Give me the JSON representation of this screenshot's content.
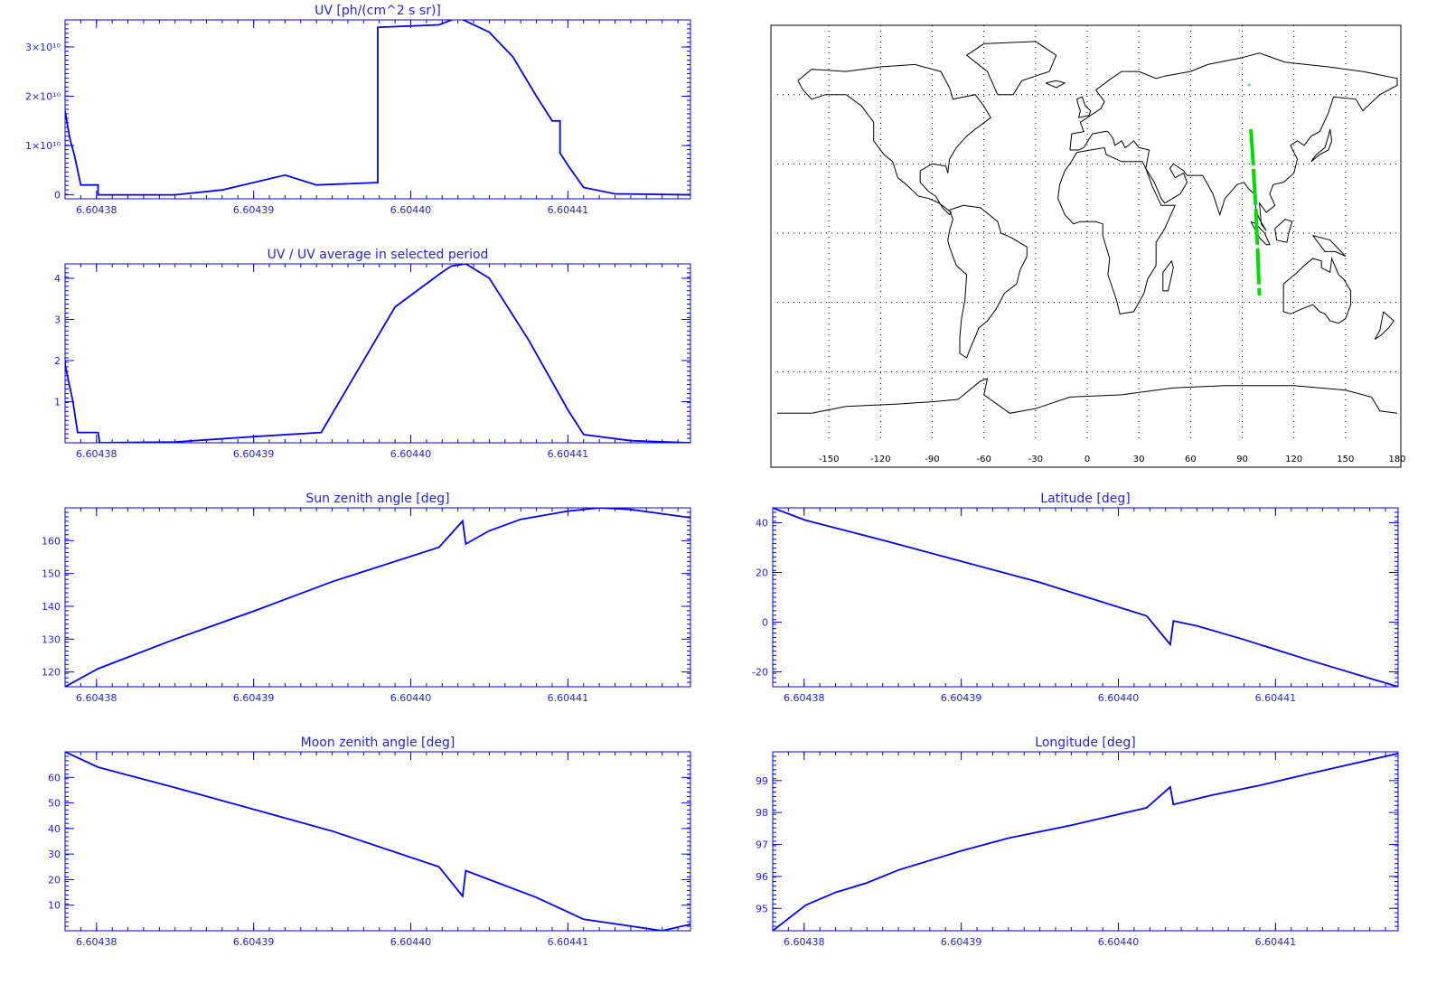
{
  "colors": {
    "axis": "#0000ff",
    "line": "#0000ff",
    "track": "#00dd00",
    "map": "#000000"
  },
  "chart_data": [
    {
      "id": "uv",
      "type": "line",
      "title": "UV [ph/(cm^2 s sr)]",
      "xlim": [
        6.604378,
        6.6044178
      ],
      "ylim": [
        -800000000.0,
        35500000000.0
      ],
      "xticks": [
        {
          "v": 6.60438,
          "label": "6.60438"
        },
        {
          "v": 6.60439,
          "label": "6.60439"
        },
        {
          "v": 6.6044,
          "label": "6.60440"
        },
        {
          "v": 6.60441,
          "label": "6.60441"
        }
      ],
      "yticks": [
        {
          "v": 0,
          "label": "0"
        },
        {
          "v": 10000000000.0,
          "label": "1×10¹⁰"
        },
        {
          "v": 20000000000.0,
          "label": "2×10¹⁰"
        },
        {
          "v": 30000000000.0,
          "label": "3×10¹⁰"
        }
      ],
      "series": [
        {
          "points": [
            [
              6.604378,
              17000000000.0
            ],
            [
              6.6043783,
              11500000000.0
            ],
            [
              6.6043786,
              8000000000.0
            ],
            [
              6.604379,
              2000000000.0
            ],
            [
              6.6043801,
              2000000000.0
            ],
            [
              6.6043801,
              0
            ],
            [
              6.604385,
              0
            ],
            [
              6.604388,
              1000000000.0
            ],
            [
              6.604392,
              4000000000.0
            ],
            [
              6.604394,
              2000000000.0
            ],
            [
              6.6043979,
              2500000000.0
            ],
            [
              6.6043979,
              34000000000.0
            ],
            [
              6.6044018,
              34500000000.0
            ],
            [
              6.604403,
              36000000000.0
            ],
            [
              6.604405,
              33000000000.0
            ],
            [
              6.6044065,
              28000000000.0
            ],
            [
              6.604408,
              20000000000.0
            ],
            [
              6.604409,
              15000000000.0
            ],
            [
              6.6044095,
              15000000000.0
            ],
            [
              6.6044095,
              8500000000.0
            ],
            [
              6.60441,
              6000000000.0
            ],
            [
              6.604411,
              1500000000.0
            ],
            [
              6.604413,
              200000000.0
            ],
            [
              6.6044178,
              0
            ]
          ]
        }
      ]
    },
    {
      "id": "uv_ratio",
      "type": "line",
      "title": "UV / UV average in selected period",
      "xlim": [
        6.604378,
        6.6044178
      ],
      "ylim": [
        0,
        4.35
      ],
      "xticks": [
        {
          "v": 6.60438,
          "label": "6.60438"
        },
        {
          "v": 6.60439,
          "label": "6.60439"
        },
        {
          "v": 6.6044,
          "label": "6.60440"
        },
        {
          "v": 6.60441,
          "label": "6.60441"
        }
      ],
      "yticks": [
        {
          "v": 1,
          "label": "1"
        },
        {
          "v": 2,
          "label": "2"
        },
        {
          "v": 3,
          "label": "3"
        },
        {
          "v": 4,
          "label": "4"
        }
      ],
      "series": [
        {
          "points": [
            [
              6.604378,
              2.0
            ],
            [
              6.604378,
              1.9
            ],
            [
              6.6043785,
              1.0
            ],
            [
              6.6043788,
              0.25
            ],
            [
              6.6043801,
              0.25
            ],
            [
              6.6043802,
              0.0
            ],
            [
              6.604385,
              0.02
            ],
            [
              6.60439,
              0.15
            ],
            [
              6.6043943,
              0.25
            ],
            [
              6.604399,
              3.3
            ],
            [
              6.604402,
              4.15
            ],
            [
              6.6044026,
              4.3
            ],
            [
              6.6044035,
              4.35
            ],
            [
              6.604405,
              4.0
            ],
            [
              6.6044075,
              2.5
            ],
            [
              6.60441,
              0.8
            ],
            [
              6.604411,
              0.2
            ],
            [
              6.604414,
              0.05
            ],
            [
              6.6044178,
              0.0
            ]
          ]
        }
      ]
    },
    {
      "id": "sza",
      "type": "line",
      "title": "Sun zenith angle [deg]",
      "xlim": [
        6.604378,
        6.6044178
      ],
      "ylim": [
        115.5,
        170
      ],
      "xticks": [
        {
          "v": 6.60438,
          "label": "6.60438"
        },
        {
          "v": 6.60439,
          "label": "6.60439"
        },
        {
          "v": 6.6044,
          "label": "6.60440"
        },
        {
          "v": 6.60441,
          "label": "6.60441"
        }
      ],
      "yticks": [
        {
          "v": 120,
          "label": "120"
        },
        {
          "v": 130,
          "label": "130"
        },
        {
          "v": 140,
          "label": "140"
        },
        {
          "v": 150,
          "label": "150"
        },
        {
          "v": 160,
          "label": "160"
        }
      ],
      "series": [
        {
          "points": [
            [
              6.604378,
              115.5
            ],
            [
              6.6043801,
              121
            ],
            [
              6.604385,
              130
            ],
            [
              6.60439,
              138.5
            ],
            [
              6.604395,
              147.5
            ],
            [
              6.6044018,
              158
            ],
            [
              6.6044033,
              166
            ],
            [
              6.6044035,
              159
            ],
            [
              6.604405,
              163
            ],
            [
              6.604407,
              166.5
            ],
            [
              6.60441,
              169
            ],
            [
              6.604412,
              170
            ],
            [
              6.604414,
              169.5
            ],
            [
              6.6044178,
              167
            ]
          ]
        }
      ]
    },
    {
      "id": "lat",
      "type": "line",
      "title": "Latitude [deg]",
      "xlim": [
        6.604378,
        6.6044178
      ],
      "ylim": [
        -26,
        46
      ],
      "xticks": [
        {
          "v": 6.60438,
          "label": "6.60438"
        },
        {
          "v": 6.60439,
          "label": "6.60439"
        },
        {
          "v": 6.6044,
          "label": "6.60440"
        },
        {
          "v": 6.60441,
          "label": "6.60441"
        }
      ],
      "yticks": [
        {
          "v": -20,
          "label": "-20"
        },
        {
          "v": 0,
          "label": "0"
        },
        {
          "v": 20,
          "label": "20"
        },
        {
          "v": 40,
          "label": "40"
        }
      ],
      "series": [
        {
          "points": [
            [
              6.604378,
              46
            ],
            [
              6.6043801,
              41
            ],
            [
              6.604385,
              33
            ],
            [
              6.60439,
              24.5
            ],
            [
              6.604395,
              16
            ],
            [
              6.6044018,
              2.5
            ],
            [
              6.6044033,
              -9
            ],
            [
              6.6044035,
              0.5
            ],
            [
              6.604405,
              -1.5
            ],
            [
              6.604408,
              -7
            ],
            [
              6.604412,
              -15
            ],
            [
              6.6044178,
              -26
            ]
          ]
        }
      ]
    },
    {
      "id": "mza",
      "type": "line",
      "title": "Moon zenith angle [deg]",
      "xlim": [
        6.604378,
        6.6044178
      ],
      "ylim": [
        0,
        70
      ],
      "xticks": [
        {
          "v": 6.60438,
          "label": "6.60438"
        },
        {
          "v": 6.60439,
          "label": "6.60439"
        },
        {
          "v": 6.6044,
          "label": "6.60440"
        },
        {
          "v": 6.60441,
          "label": "6.60441"
        }
      ],
      "yticks": [
        {
          "v": 10,
          "label": "10"
        },
        {
          "v": 20,
          "label": "20"
        },
        {
          "v": 30,
          "label": "30"
        },
        {
          "v": 40,
          "label": "40"
        },
        {
          "v": 50,
          "label": "50"
        },
        {
          "v": 60,
          "label": "60"
        }
      ],
      "series": [
        {
          "points": [
            [
              6.604378,
              70
            ],
            [
              6.6043801,
              64
            ],
            [
              6.604385,
              56
            ],
            [
              6.60439,
              47.5
            ],
            [
              6.604395,
              39
            ],
            [
              6.6044018,
              25
            ],
            [
              6.6044033,
              13.5
            ],
            [
              6.6044035,
              23.5
            ],
            [
              6.604405,
              20
            ],
            [
              6.604408,
              13
            ],
            [
              6.604411,
              4.5
            ],
            [
              6.604416,
              0
            ],
            [
              6.6044178,
              2.5
            ]
          ]
        }
      ]
    },
    {
      "id": "lon",
      "type": "line",
      "title": "Longitude [deg]",
      "xlim": [
        6.604378,
        6.6044178
      ],
      "ylim": [
        94.3,
        99.9
      ],
      "xticks": [
        {
          "v": 6.60438,
          "label": "6.60438"
        },
        {
          "v": 6.60439,
          "label": "6.60439"
        },
        {
          "v": 6.6044,
          "label": "6.60440"
        },
        {
          "v": 6.60441,
          "label": "6.60441"
        }
      ],
      "yticks": [
        {
          "v": 95,
          "label": "95"
        },
        {
          "v": 96,
          "label": "96"
        },
        {
          "v": 97,
          "label": "97"
        },
        {
          "v": 98,
          "label": "98"
        },
        {
          "v": 99,
          "label": "99"
        }
      ],
      "series": [
        {
          "points": [
            [
              6.604378,
              94.3
            ],
            [
              6.6043801,
              95.1
            ],
            [
              6.604382,
              95.5
            ],
            [
              6.604384,
              95.8
            ],
            [
              6.604386,
              96.2
            ],
            [
              6.604388,
              96.5
            ],
            [
              6.60439,
              96.8
            ],
            [
              6.604393,
              97.2
            ],
            [
              6.604397,
              97.6
            ],
            [
              6.6044018,
              98.15
            ],
            [
              6.6044033,
              98.8
            ],
            [
              6.6044035,
              98.25
            ],
            [
              6.604406,
              98.55
            ],
            [
              6.604409,
              98.85
            ],
            [
              6.604412,
              99.2
            ],
            [
              6.6044178,
              99.85
            ]
          ]
        }
      ]
    }
  ],
  "map": {
    "lon_range": [
      -180,
      180
    ],
    "lat_range": [
      -90,
      90
    ],
    "xticks": [
      {
        "v": -150,
        "label": "-150"
      },
      {
        "v": -120,
        "label": "-120"
      },
      {
        "v": -90,
        "label": "-90"
      },
      {
        "v": -60,
        "label": "-60"
      },
      {
        "v": -30,
        "label": "-30"
      },
      {
        "v": 0,
        "label": "0"
      },
      {
        "v": 30,
        "label": "30"
      },
      {
        "v": 60,
        "label": "60"
      },
      {
        "v": 90,
        "label": "90"
      },
      {
        "v": 120,
        "label": "120"
      },
      {
        "v": 150,
        "label": "150"
      },
      {
        "v": 180,
        "label": "180"
      }
    ],
    "grid_lats": [
      -60,
      -30,
      0,
      30,
      60
    ],
    "start_marker": {
      "lon": 94,
      "lat": 64
    },
    "track": [
      [
        95,
        45
      ],
      [
        96,
        35
      ],
      [
        97,
        22
      ],
      [
        98,
        10
      ],
      [
        98.5,
        0
      ],
      [
        99,
        -8
      ],
      [
        99.5,
        -18
      ],
      [
        100,
        -27
      ]
    ]
  }
}
